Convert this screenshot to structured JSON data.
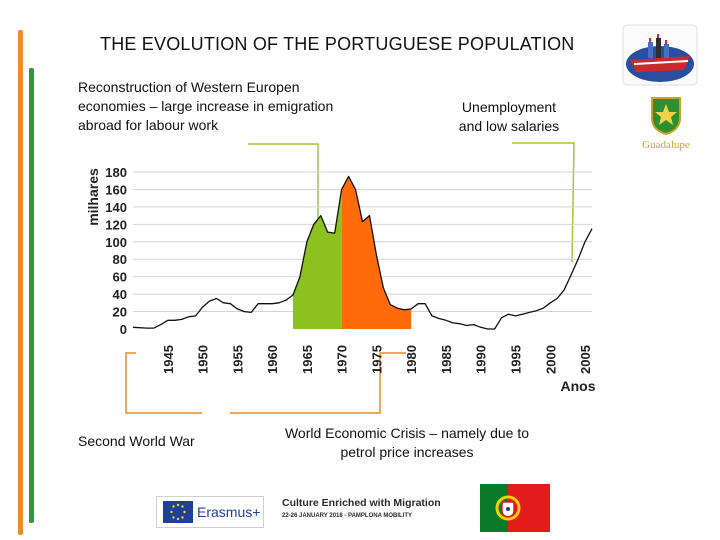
{
  "slide": {
    "title": "THE EVOLUTION OF THE PORTUGUESE POPULATION",
    "annotations": {
      "reconstruction": "Reconstruction of Western Europen economies – large increase in emigration abroad for labour work",
      "unemployment": "Unemployment and low salaries",
      "wwii": "Second World War",
      "crisis": "World Economic Crisis – namely due to petrol price increases"
    },
    "logos": {
      "guadalupe": "Guadalupe",
      "erasmus": "Erasmus+",
      "culture_line1": "Culture Enriched with Migration",
      "culture_line2": "22-26 JANUARY 2018 - PAMPLONA MOBILITY"
    },
    "colors": {
      "accent_orange": "#f08a24",
      "accent_green": "#2e9a35",
      "area_green": "#8cc21f",
      "area_orange": "#ff6a0a",
      "bracket_green": "#9ec93a"
    }
  },
  "chart_data": {
    "type": "area",
    "title": "",
    "ylabel": "milhares",
    "xlabel": "Anos",
    "ylim": [
      0,
      180
    ],
    "xlim": [
      1940,
      2006
    ],
    "yticks": [
      0,
      20,
      40,
      60,
      80,
      100,
      120,
      140,
      160,
      180
    ],
    "xticks": [
      1945,
      1950,
      1955,
      1960,
      1965,
      1970,
      1975,
      1980,
      1985,
      1990,
      1995,
      2000,
      2005
    ],
    "grid": true,
    "series": [
      {
        "values": [
          [
            1940,
            2
          ],
          [
            1942,
            1
          ],
          [
            1943,
            1
          ],
          [
            1944,
            5
          ],
          [
            1945,
            10
          ],
          [
            1946,
            10
          ],
          [
            1947,
            11
          ],
          [
            1948,
            14
          ],
          [
            1949,
            15
          ],
          [
            1950,
            25
          ],
          [
            1951,
            32
          ],
          [
            1952,
            35
          ],
          [
            1953,
            30
          ],
          [
            1954,
            29
          ],
          [
            1955,
            23
          ],
          [
            1956,
            20
          ],
          [
            1957,
            19
          ],
          [
            1958,
            29
          ],
          [
            1959,
            29
          ],
          [
            1960,
            29
          ],
          [
            1961,
            30
          ],
          [
            1962,
            33
          ],
          [
            1963,
            39
          ],
          [
            1964,
            60
          ],
          [
            1965,
            100
          ],
          [
            1966,
            120
          ],
          [
            1967,
            130
          ],
          [
            1968,
            111
          ],
          [
            1969,
            110
          ],
          [
            1970,
            160
          ],
          [
            1971,
            175
          ],
          [
            1972,
            160
          ],
          [
            1973,
            123
          ],
          [
            1974,
            130
          ],
          [
            1975,
            85
          ],
          [
            1976,
            47
          ],
          [
            1977,
            28
          ],
          [
            1978,
            24
          ],
          [
            1979,
            22
          ],
          [
            1980,
            23
          ],
          [
            1981,
            29
          ],
          [
            1982,
            29
          ],
          [
            1983,
            15
          ],
          [
            1984,
            12
          ],
          [
            1985,
            10
          ],
          [
            1986,
            7
          ],
          [
            1987,
            6
          ],
          [
            1988,
            4
          ],
          [
            1989,
            5
          ],
          [
            1990,
            2
          ],
          [
            1991,
            0
          ],
          [
            1992,
            0
          ],
          [
            1993,
            13
          ],
          [
            1994,
            17
          ],
          [
            1995,
            15
          ],
          [
            1996,
            17
          ],
          [
            1997,
            19
          ],
          [
            1998,
            21
          ],
          [
            1999,
            24
          ],
          [
            2000,
            30
          ],
          [
            2001,
            35
          ],
          [
            2002,
            45
          ],
          [
            2003,
            62
          ],
          [
            2004,
            80
          ],
          [
            2005,
            100
          ],
          [
            2006,
            115
          ]
        ]
      }
    ],
    "highlight_ranges": [
      {
        "from": 1963,
        "to": 1970,
        "color": "#8cc21f"
      },
      {
        "from": 1970,
        "to": 1980,
        "color": "#ff6a0a"
      }
    ]
  }
}
